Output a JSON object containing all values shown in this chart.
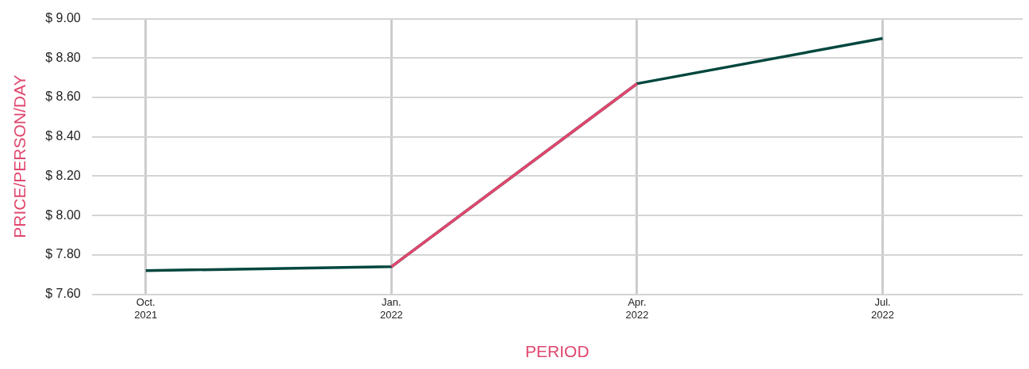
{
  "chart_data": {
    "type": "line",
    "xlabel": "PERIOD",
    "ylabel": "PRICE/PERSON/DAY",
    "categories": [
      "Oct. 2021",
      "Jan. 2022",
      "Apr. 2022",
      "Jul. 2022"
    ],
    "series": [
      {
        "color": "#00473e",
        "values": [
          7.72,
          7.74,
          8.67,
          8.9
        ]
      },
      {
        "color": "#e0476e",
        "values": [
          null,
          7.74,
          8.67,
          null
        ]
      }
    ],
    "ylim": [
      7.6,
      9.0
    ],
    "yticks": [
      {
        "value": 7.6,
        "label": "$ 7.60"
      },
      {
        "value": 7.8,
        "label": "$ 7.80"
      },
      {
        "value": 8.0,
        "label": "$ 8.00"
      },
      {
        "value": 8.2,
        "label": "$ 8.20"
      },
      {
        "value": 8.4,
        "label": "$ 8.40"
      },
      {
        "value": 8.6,
        "label": "$ 8.60"
      },
      {
        "value": 8.8,
        "label": "$ 8.80"
      },
      {
        "value": 9.0,
        "label": "$ 9.00"
      }
    ],
    "grid": true,
    "legend": false,
    "marker": "none",
    "line_style": "solid"
  }
}
